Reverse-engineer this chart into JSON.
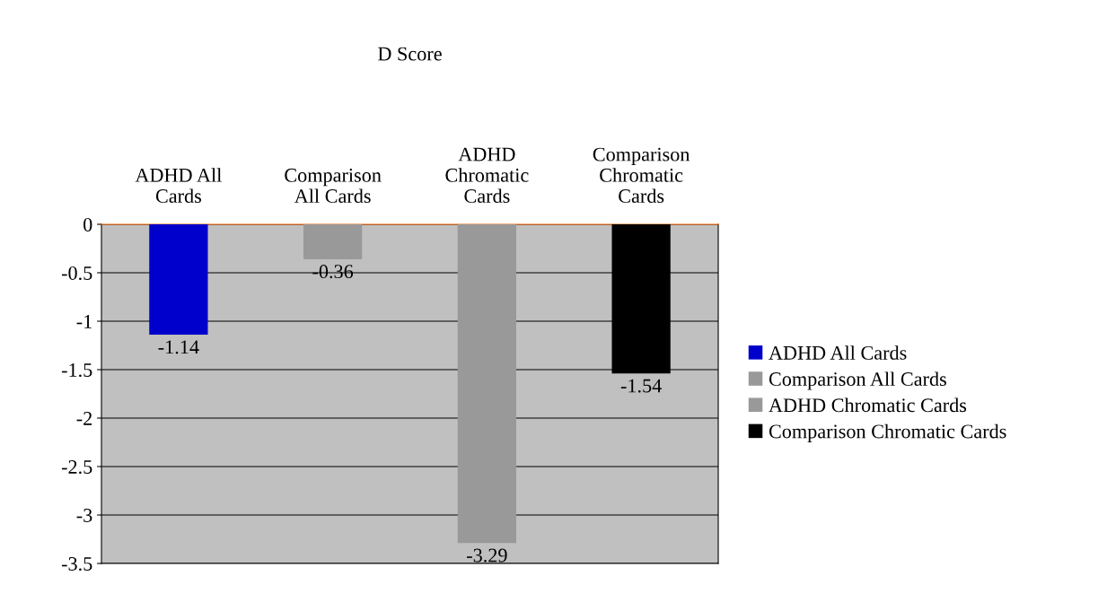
{
  "chart_data": {
    "type": "bar",
    "title": "D Score",
    "categories": [
      "ADHD All Cards",
      "Comparison All Cards",
      "ADHD Chromatic Cards",
      "Comparison Chromatic Cards"
    ],
    "series": [
      {
        "name": "ADHD All Cards",
        "color": "#0000cc",
        "values": [
          -1.14,
          null,
          null,
          null
        ]
      },
      {
        "name": "Comparison All Cards",
        "color": "#999999",
        "values": [
          null,
          -0.36,
          null,
          null
        ]
      },
      {
        "name": "ADHD Chromatic Cards",
        "color": "#999999",
        "values": [
          null,
          null,
          -3.29,
          null
        ]
      },
      {
        "name": "Comparison Chromatic Cards",
        "color": "#000000",
        "values": [
          null,
          null,
          null,
          -1.54
        ]
      }
    ],
    "ylim": [
      -3.5,
      0
    ],
    "yticks": [
      0,
      -0.5,
      -1,
      -1.5,
      -2,
      -2.5,
      -3,
      -3.5
    ],
    "grid": "y",
    "legend": "right",
    "data_labels": true
  }
}
